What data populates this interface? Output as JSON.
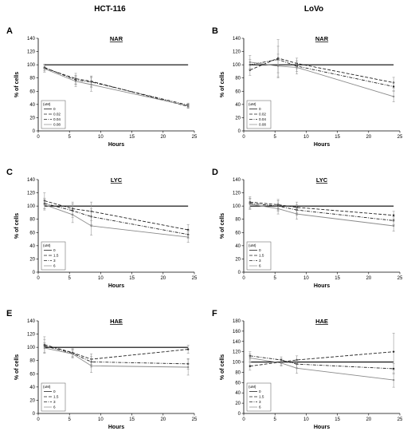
{
  "columns": [
    "HCT-116",
    "LoVo"
  ],
  "legend_unit": "(uM)",
  "chart_data": [
    {
      "panel": "A",
      "type": "line",
      "title": "NAR",
      "column": 0,
      "row": 0,
      "xlabel": "Hours",
      "ylabel": "% of cells",
      "xlim": [
        0,
        25
      ],
      "ylim": [
        0,
        140
      ],
      "xticks": [
        "0",
        "5",
        "10",
        "15",
        "20",
        "25"
      ],
      "yticks": [
        "0",
        "20",
        "40",
        "60",
        "80",
        "100",
        "120",
        "140"
      ],
      "x": [
        1,
        6,
        8.5,
        24
      ],
      "series": [
        {
          "name": "0",
          "style": "solid-black",
          "values": [
            100,
            100,
            100,
            100
          ],
          "err": [
            0,
            0,
            0,
            0
          ]
        },
        {
          "name": "0.02",
          "style": "dash",
          "values": [
            95,
            79,
            75,
            37
          ],
          "err": [
            6,
            8,
            8,
            3
          ]
        },
        {
          "name": "0.04",
          "style": "dashdot",
          "values": [
            96,
            77,
            74,
            39
          ],
          "err": [
            5,
            7,
            8,
            3
          ]
        },
        {
          "name": "0.08",
          "style": "gray",
          "values": [
            94,
            75,
            70,
            38
          ],
          "err": [
            5,
            8,
            10,
            3
          ]
        }
      ]
    },
    {
      "panel": "B",
      "type": "line",
      "title": "NAR",
      "column": 1,
      "row": 0,
      "xlabel": "Hours",
      "ylabel": "% of cells",
      "xlim": [
        0,
        25
      ],
      "ylim": [
        0,
        140
      ],
      "xticks": [
        "0",
        "5",
        "10",
        "15",
        "20",
        "25"
      ],
      "yticks": [
        "0",
        "20",
        "40",
        "60",
        "80",
        "100",
        "120",
        "140"
      ],
      "x": [
        1,
        5.5,
        8.5,
        24
      ],
      "series": [
        {
          "name": "0",
          "style": "solid-black",
          "values": [
            100,
            100,
            100,
            100
          ],
          "err": [
            0,
            0,
            0,
            0
          ]
        },
        {
          "name": "0.02",
          "style": "dash",
          "values": [
            92,
            110,
            102,
            73
          ],
          "err": [
            8,
            28,
            8,
            8
          ]
        },
        {
          "name": "0.04",
          "style": "dashdot",
          "values": [
            100,
            108,
            98,
            67
          ],
          "err": [
            8,
            20,
            8,
            6
          ]
        },
        {
          "name": "0.08",
          "style": "gray",
          "values": [
            104,
            98,
            96,
            52
          ],
          "err": [
            10,
            18,
            10,
            8
          ]
        }
      ]
    },
    {
      "panel": "C",
      "type": "line",
      "title": "LYC",
      "column": 0,
      "row": 1,
      "xlabel": "Hours",
      "ylabel": "% of cells",
      "xlim": [
        0,
        25
      ],
      "ylim": [
        0,
        140
      ],
      "xticks": [
        "0",
        "5",
        "10",
        "15",
        "20",
        "25"
      ],
      "yticks": [
        "0",
        "20",
        "40",
        "60",
        "80",
        "100",
        "120",
        "140"
      ],
      "x": [
        1,
        5.5,
        8.5,
        24
      ],
      "series": [
        {
          "name": "0",
          "style": "solid-black",
          "values": [
            100,
            100,
            100,
            100
          ],
          "err": [
            0,
            0,
            0,
            0
          ]
        },
        {
          "name": "1.5",
          "style": "dash",
          "values": [
            108,
            96,
            92,
            64
          ],
          "err": [
            12,
            10,
            14,
            8
          ]
        },
        {
          "name": "3",
          "style": "dashdot",
          "values": [
            104,
            93,
            84,
            57
          ],
          "err": [
            8,
            10,
            12,
            6
          ]
        },
        {
          "name": "6",
          "style": "gray",
          "values": [
            102,
            87,
            70,
            53
          ],
          "err": [
            8,
            12,
            14,
            8
          ]
        }
      ]
    },
    {
      "panel": "D",
      "type": "line",
      "title": "LYC",
      "column": 1,
      "row": 1,
      "xlabel": "Hours",
      "ylabel": "% of cells",
      "xlim": [
        0,
        25
      ],
      "ylim": [
        0,
        140
      ],
      "xticks": [
        "0",
        "5",
        "10",
        "15",
        "20",
        "25"
      ],
      "yticks": [
        "0",
        "20",
        "40",
        "60",
        "80",
        "100",
        "120",
        "140"
      ],
      "x": [
        1,
        5.5,
        8.5,
        24
      ],
      "series": [
        {
          "name": "0",
          "style": "solid-black",
          "values": [
            100,
            100,
            100,
            100
          ],
          "err": [
            0,
            0,
            0,
            0
          ]
        },
        {
          "name": "1.5",
          "style": "dash",
          "values": [
            106,
            102,
            98,
            86
          ],
          "err": [
            8,
            8,
            8,
            6
          ]
        },
        {
          "name": "3",
          "style": "dashdot",
          "values": [
            104,
            100,
            94,
            78
          ],
          "err": [
            8,
            8,
            8,
            6
          ]
        },
        {
          "name": "6",
          "style": "gray",
          "values": [
            103,
            96,
            88,
            70
          ],
          "err": [
            8,
            8,
            8,
            8
          ]
        }
      ]
    },
    {
      "panel": "E",
      "type": "line",
      "title": "HAE",
      "column": 0,
      "row": 2,
      "xlabel": "Hours",
      "ylabel": "% of cells",
      "xlim": [
        0,
        25
      ],
      "ylim": [
        0,
        140
      ],
      "xticks": [
        "0",
        "5",
        "10",
        "15",
        "20",
        "25"
      ],
      "yticks": [
        "0",
        "20",
        "40",
        "60",
        "80",
        "100",
        "120",
        "140"
      ],
      "x": [
        1,
        5.5,
        8.5,
        24
      ],
      "series": [
        {
          "name": "0",
          "style": "solid-black",
          "values": [
            100,
            100,
            100,
            100
          ],
          "err": [
            0,
            0,
            0,
            0
          ]
        },
        {
          "name": "1.5",
          "style": "dash",
          "values": [
            104,
            92,
            82,
            97
          ],
          "err": [
            12,
            6,
            8,
            6
          ]
        },
        {
          "name": "3",
          "style": "dashdot",
          "values": [
            102,
            91,
            78,
            75
          ],
          "err": [
            10,
            6,
            8,
            8
          ]
        },
        {
          "name": "6",
          "style": "gray",
          "values": [
            99,
            90,
            72,
            70
          ],
          "err": [
            8,
            6,
            10,
            12
          ]
        }
      ]
    },
    {
      "panel": "F",
      "type": "line",
      "title": "HAE",
      "column": 1,
      "row": 2,
      "xlabel": "Hours",
      "ylabel": "% of cells",
      "xlim": [
        0,
        25
      ],
      "ylim": [
        0,
        180
      ],
      "xticks": [
        "0",
        "5",
        "10",
        "15",
        "20",
        "25"
      ],
      "yticks": [
        "0",
        "20",
        "40",
        "60",
        "80",
        "100",
        "120",
        "140",
        "160",
        "180"
      ],
      "x": [
        1,
        6,
        8.5,
        24
      ],
      "series": [
        {
          "name": "0",
          "style": "solid-black",
          "values": [
            100,
            100,
            100,
            100
          ],
          "err": [
            0,
            0,
            0,
            0
          ]
        },
        {
          "name": "1.5",
          "style": "dash",
          "values": [
            92,
            100,
            104,
            120
          ],
          "err": [
            8,
            6,
            8,
            36
          ]
        },
        {
          "name": "3",
          "style": "dashdot",
          "values": [
            112,
            104,
            96,
            87
          ],
          "err": [
            8,
            6,
            8,
            10
          ]
        },
        {
          "name": "6",
          "style": "gray",
          "values": [
            108,
            98,
            88,
            65
          ],
          "err": [
            8,
            6,
            10,
            14
          ]
        }
      ]
    }
  ]
}
